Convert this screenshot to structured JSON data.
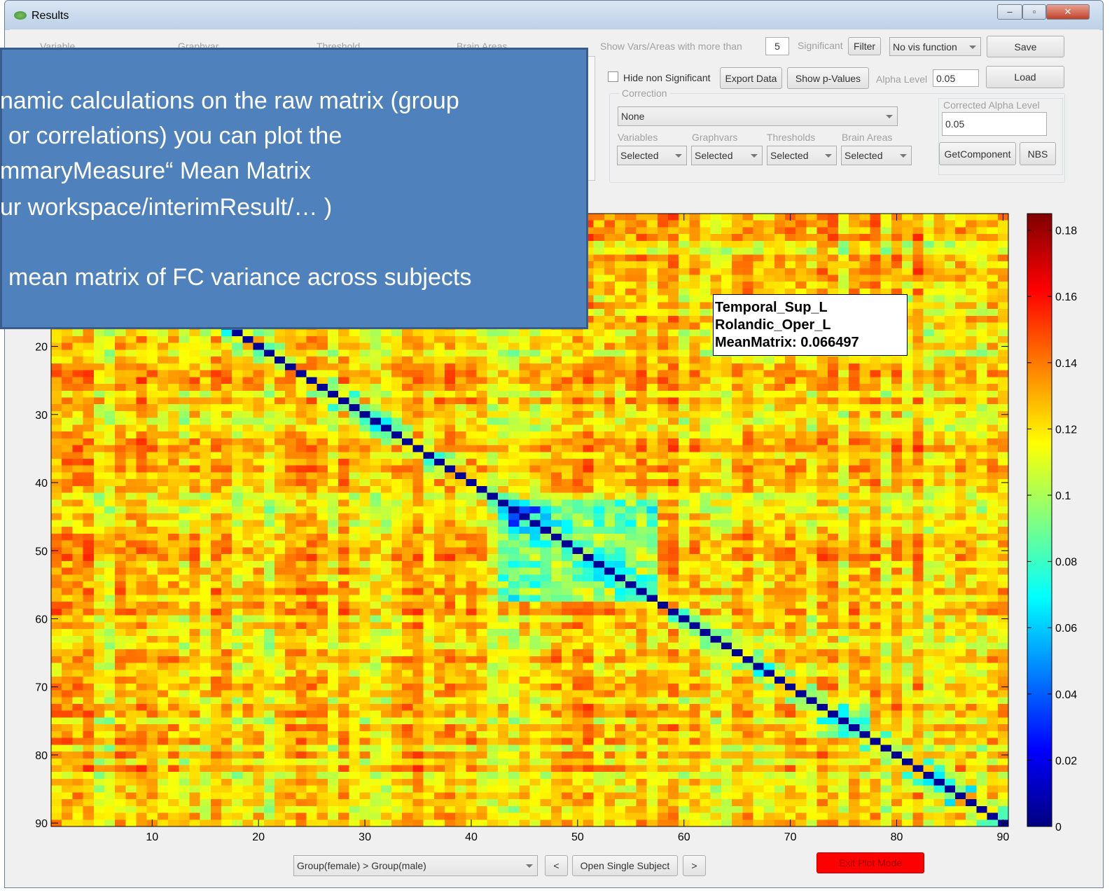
{
  "window": {
    "title": "Results"
  },
  "controls": {
    "column_headers": [
      "Variable",
      "Graphvar",
      "Threshold",
      "Brain Areas"
    ],
    "show_vars_label": "Show Vars/Areas with more than",
    "show_vars_value": "5",
    "significant_label": "Significant",
    "filter_button": "Filter",
    "vis_function": "No vis function",
    "save_button": "Save",
    "hide_non_significant": "Hide non Significant",
    "export_button": "Export Data",
    "pvalues_button": "Show p-Values",
    "alpha_label": "Alpha Level",
    "alpha_value": "0.05",
    "load_button": "Load",
    "correction_label": "Correction",
    "correction_value": "None",
    "corrected_alpha_label": "Corrected Alpha Level",
    "corrected_alpha_value": "0.05",
    "filters": [
      {
        "label": "Variables",
        "value": "Selected"
      },
      {
        "label": "Graphvars",
        "value": "Selected"
      },
      {
        "label": "Thresholds",
        "value": "Selected"
      },
      {
        "label": "Brain Areas",
        "value": "Selected"
      }
    ],
    "getcomponent_button": "GetComponent",
    "nbs_button": "NBS"
  },
  "bottom_bar": {
    "comparison": "Group(female) > Group(male)",
    "prev_button": "<",
    "open_subject_button": "Open Single Subject",
    "next_button": ">",
    "exit_button": "Exit Plot Mode"
  },
  "overlay": {
    "lines": [
      "namic calculations on the raw matrix (group",
      "or correlations) you can plot the",
      "mmaryMeasure“ Mean Matrix",
      "ur workspace/interimResult/…  )",
      "mean matrix of FC variance across subjects"
    ]
  },
  "tooltip": {
    "lines": [
      "Temporal_Sup_L",
      "Rolandic_Oper_L",
      "MeanMatrix: 0.066497"
    ]
  },
  "chart_data": {
    "type": "heatmap",
    "xlim": [
      0.5,
      90.5
    ],
    "ylim": [
      0.5,
      90.5
    ],
    "xticks": [
      10,
      20,
      30,
      40,
      50,
      60,
      70,
      80,
      90
    ],
    "yticks": [
      20,
      30,
      40,
      50,
      60,
      70,
      80,
      90
    ],
    "clim": [
      0,
      0.185
    ],
    "cticks": [
      0,
      0.02,
      0.04,
      0.06,
      0.08,
      0.1,
      0.12,
      0.14,
      0.16,
      0.18
    ],
    "colormap": "jet"
  }
}
